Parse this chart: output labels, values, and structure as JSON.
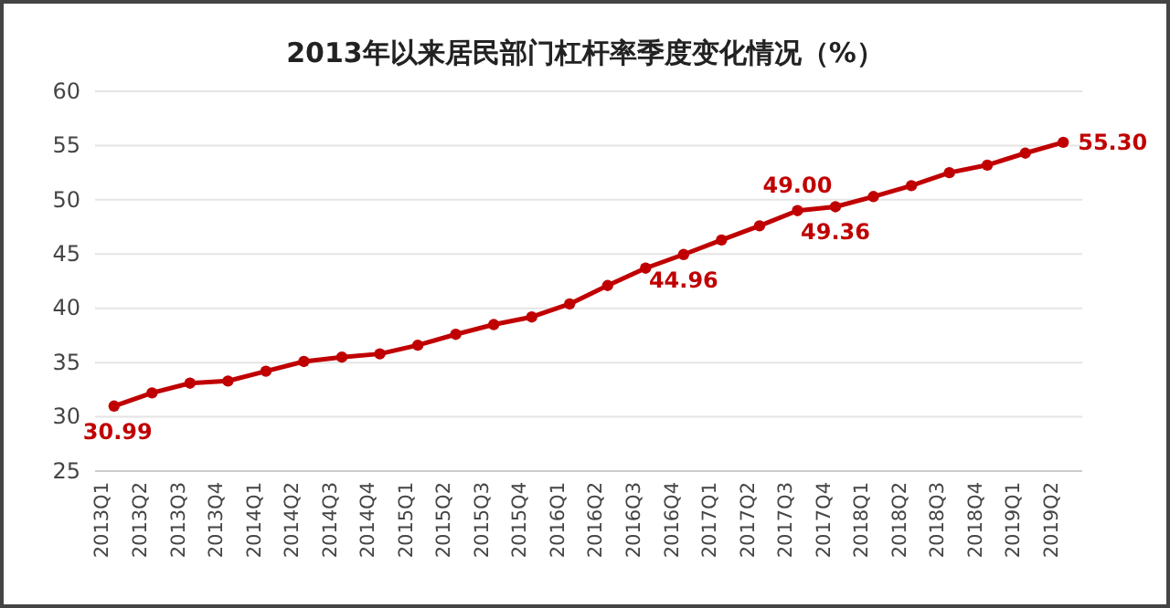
{
  "chart_data": {
    "type": "line",
    "title": "2013年以来居民部门杠杆率季度变化情况（%）",
    "categories": [
      "2013Q1",
      "2013Q2",
      "2013Q3",
      "2013Q4",
      "2014Q1",
      "2014Q2",
      "2014Q3",
      "2014Q4",
      "2015Q1",
      "2015Q2",
      "2015Q3",
      "2015Q4",
      "2016Q1",
      "2016Q2",
      "2016Q3",
      "2016Q4",
      "2017Q1",
      "2017Q2",
      "2017Q3",
      "2017Q4",
      "2018Q1",
      "2018Q2",
      "2018Q3",
      "2018Q4",
      "2019Q1",
      "2019Q2"
    ],
    "series": [
      {
        "color": "#c00000",
        "values": [
          30.99,
          32.2,
          33.1,
          33.3,
          34.2,
          35.1,
          35.5,
          35.8,
          36.6,
          37.6,
          38.5,
          39.2,
          40.4,
          42.1,
          43.7,
          44.96,
          46.3,
          47.6,
          49.0,
          49.36,
          50.3,
          51.3,
          52.5,
          53.2,
          54.3,
          55.3
        ],
        "value_labels": [
          "30.99",
          null,
          null,
          null,
          null,
          null,
          null,
          null,
          null,
          null,
          null,
          null,
          null,
          null,
          null,
          "44.96",
          null,
          null,
          "49.00",
          "49.36",
          null,
          null,
          null,
          null,
          null,
          "55.30"
        ]
      }
    ],
    "ylim": [
      25,
      60
    ],
    "yticks": [
      25,
      30,
      35,
      40,
      45,
      50,
      55,
      60
    ],
    "grid": "y",
    "marker": "circle",
    "line_style": "solid"
  }
}
